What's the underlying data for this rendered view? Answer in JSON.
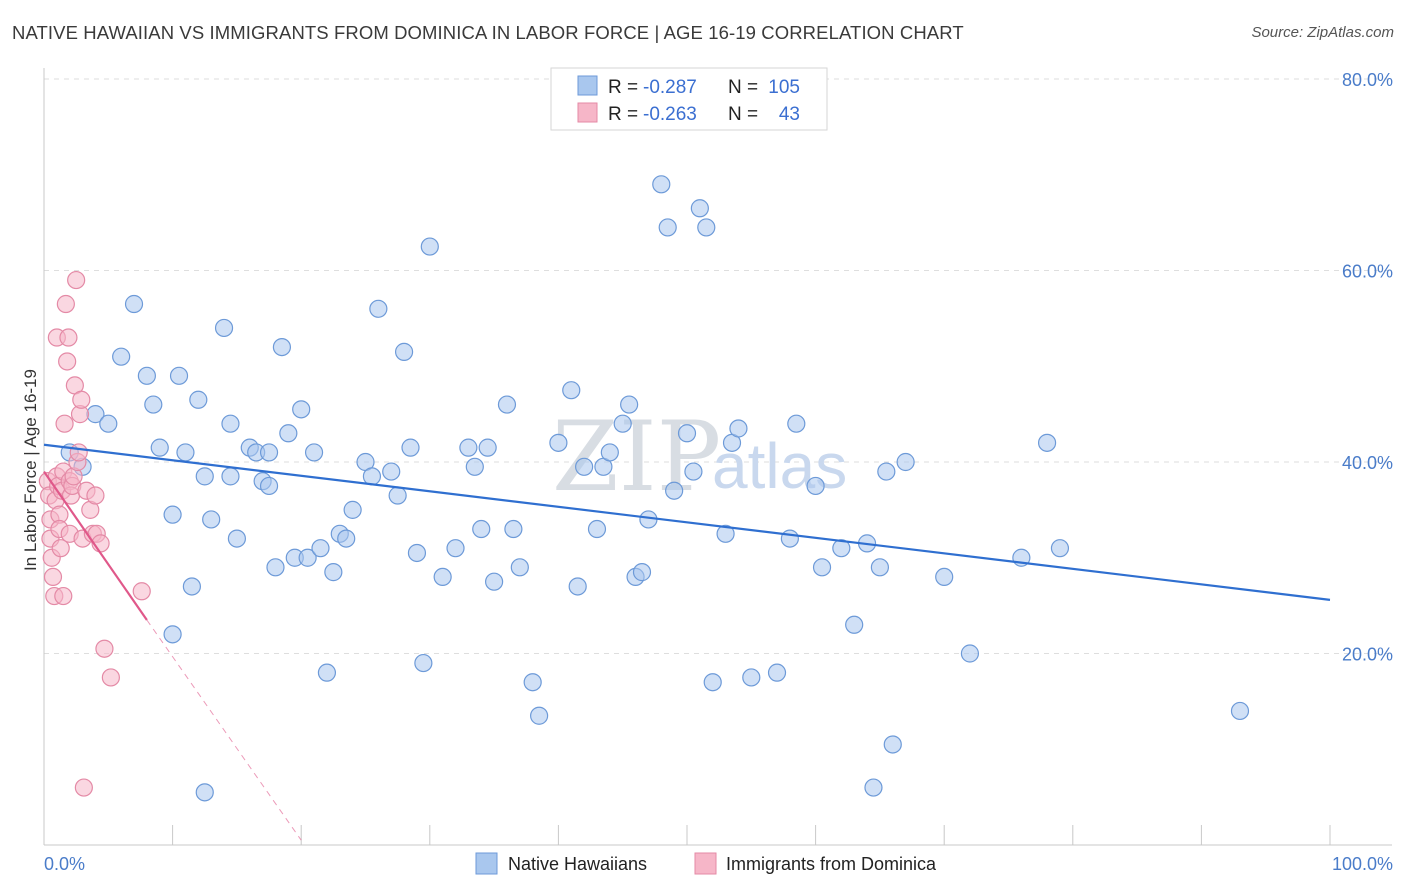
{
  "title": "NATIVE HAWAIIAN VS IMMIGRANTS FROM DOMINICA IN LABOR FORCE | AGE 16-19 CORRELATION CHART",
  "source": "Source: ZipAtlas.com",
  "watermark": {
    "zip": "ZIP",
    "atlas": "atlas"
  },
  "colors": {
    "blue_fill": "#a9c7ee",
    "blue_stroke": "#6d9ad8",
    "blue_line": "#2f6fd0",
    "pink_fill": "#f6b6c8",
    "pink_stroke": "#e48aa6",
    "pink_line": "#e0588a",
    "grid": "#dedede",
    "tick_text": "#4a7cc9"
  },
  "legend": {
    "rows": [
      {
        "r_label": "R =",
        "r_value": "-0.287",
        "n_label": "N =",
        "n_value": "105"
      },
      {
        "r_label": "R =",
        "r_value": "-0.263",
        "n_label": "N =",
        "n_value": "43"
      }
    ]
  },
  "chart_data": {
    "type": "scatter",
    "title": "NATIVE HAWAIIAN VS IMMIGRANTS FROM DOMINICA IN LABOR FORCE | AGE 16-19 CORRELATION CHART",
    "xlabel": "",
    "ylabel": "In Labor Force | Age 16-19",
    "xlim": [
      0,
      100
    ],
    "ylim": [
      0,
      80
    ],
    "x_tick_labels": [
      "0.0%",
      "100.0%"
    ],
    "y_ticks": [
      20,
      40,
      60,
      80
    ],
    "y_tick_labels": [
      "20.0%",
      "40.0%",
      "60.0%",
      "80.0%"
    ],
    "grid": true,
    "legend_position": "bottom",
    "series": [
      {
        "name": "Native Hawaiians",
        "color": "#a9c7ee",
        "r": -0.287,
        "n": 105,
        "trend": {
          "x": [
            0,
            100
          ],
          "y": [
            41.8,
            25.6
          ]
        },
        "points": [
          [
            2.0,
            41.0
          ],
          [
            3.0,
            39.5
          ],
          [
            4.0,
            45.0
          ],
          [
            5.0,
            44.0
          ],
          [
            6.0,
            51.0
          ],
          [
            7.0,
            56.5
          ],
          [
            8.0,
            49.0
          ],
          [
            8.5,
            46.0
          ],
          [
            9.0,
            41.5
          ],
          [
            10.0,
            34.5
          ],
          [
            10.5,
            49.0
          ],
          [
            11.0,
            41.0
          ],
          [
            12.0,
            46.5
          ],
          [
            12.5,
            38.5
          ],
          [
            13.0,
            34.0
          ],
          [
            14.0,
            54.0
          ],
          [
            14.5,
            38.5
          ],
          [
            15.0,
            32.0
          ],
          [
            16.0,
            41.5
          ],
          [
            16.5,
            41.0
          ],
          [
            17.0,
            38.0
          ],
          [
            17.5,
            37.5
          ],
          [
            18.0,
            29.0
          ],
          [
            18.5,
            52.0
          ],
          [
            19.0,
            43.0
          ],
          [
            19.5,
            30.0
          ],
          [
            20.0,
            45.5
          ],
          [
            21.0,
            41.0
          ],
          [
            22.0,
            18.0
          ],
          [
            22.5,
            28.5
          ],
          [
            23.0,
            32.5
          ],
          [
            23.5,
            32.0
          ],
          [
            24.0,
            35.0
          ],
          [
            25.0,
            40.0
          ],
          [
            25.5,
            38.5
          ],
          [
            26.0,
            56.0
          ],
          [
            27.0,
            39.0
          ],
          [
            27.5,
            36.5
          ],
          [
            28.0,
            51.5
          ],
          [
            28.5,
            41.5
          ],
          [
            29.0,
            30.5
          ],
          [
            29.5,
            19.0
          ],
          [
            30.0,
            62.5
          ],
          [
            31.0,
            28.0
          ],
          [
            32.0,
            31.0
          ],
          [
            33.0,
            41.5
          ],
          [
            33.5,
            39.5
          ],
          [
            34.0,
            33.0
          ],
          [
            34.5,
            41.5
          ],
          [
            35.0,
            27.5
          ],
          [
            36.0,
            46.0
          ],
          [
            36.5,
            33.0
          ],
          [
            37.0,
            29.0
          ],
          [
            38.0,
            17.0
          ],
          [
            38.5,
            13.5
          ],
          [
            40.0,
            42.0
          ],
          [
            41.0,
            47.5
          ],
          [
            41.5,
            27.0
          ],
          [
            42.0,
            39.5
          ],
          [
            43.0,
            33.0
          ],
          [
            43.5,
            39.5
          ],
          [
            44.0,
            41.0
          ],
          [
            45.0,
            44.0
          ],
          [
            45.5,
            46.0
          ],
          [
            46.0,
            28.0
          ],
          [
            46.5,
            28.5
          ],
          [
            47.0,
            34.0
          ],
          [
            48.0,
            69.0
          ],
          [
            48.5,
            64.5
          ],
          [
            49.0,
            37.0
          ],
          [
            50.0,
            43.0
          ],
          [
            50.5,
            39.0
          ],
          [
            51.0,
            66.5
          ],
          [
            51.5,
            64.5
          ],
          [
            52.0,
            17.0
          ],
          [
            53.0,
            32.5
          ],
          [
            53.5,
            42.0
          ],
          [
            54.0,
            43.5
          ],
          [
            55.0,
            17.5
          ],
          [
            57.0,
            18.0
          ],
          [
            58.0,
            32.0
          ],
          [
            58.5,
            44.0
          ],
          [
            60.0,
            37.5
          ],
          [
            60.5,
            29.0
          ],
          [
            62.0,
            31.0
          ],
          [
            63.0,
            23.0
          ],
          [
            64.0,
            31.5
          ],
          [
            64.5,
            6.0
          ],
          [
            65.0,
            29.0
          ],
          [
            65.5,
            39.0
          ],
          [
            66.0,
            10.5
          ],
          [
            67.0,
            40.0
          ],
          [
            70.0,
            28.0
          ],
          [
            72.0,
            20.0
          ],
          [
            76.0,
            30.0
          ],
          [
            78.0,
            42.0
          ],
          [
            79.0,
            31.0
          ],
          [
            93.0,
            14.0
          ],
          [
            10.0,
            22.0
          ],
          [
            11.5,
            27.0
          ],
          [
            12.5,
            5.5
          ],
          [
            14.5,
            44.0
          ],
          [
            17.5,
            41.0
          ],
          [
            20.5,
            30.0
          ],
          [
            21.5,
            31.0
          ]
        ]
      },
      {
        "name": "Immigrants from Dominica",
        "color": "#f6b6c8",
        "r": -0.263,
        "n": 43,
        "trend": {
          "x": [
            0,
            8.0
          ],
          "y": [
            39.0,
            23.5
          ]
        },
        "trend_extension": {
          "x": [
            8.0,
            20.0
          ],
          "y": [
            23.5,
            0.5
          ]
        },
        "points": [
          [
            0.3,
            38.0
          ],
          [
            0.4,
            36.5
          ],
          [
            0.5,
            34.0
          ],
          [
            0.5,
            32.0
          ],
          [
            0.6,
            30.0
          ],
          [
            0.7,
            28.0
          ],
          [
            0.8,
            26.0
          ],
          [
            0.9,
            36.0
          ],
          [
            1.0,
            38.5
          ],
          [
            1.0,
            53.0
          ],
          [
            1.1,
            37.5
          ],
          [
            1.2,
            34.5
          ],
          [
            1.2,
            33.0
          ],
          [
            1.3,
            31.0
          ],
          [
            1.4,
            37.0
          ],
          [
            1.5,
            39.0
          ],
          [
            1.5,
            26.0
          ],
          [
            1.6,
            44.0
          ],
          [
            1.7,
            56.5
          ],
          [
            1.8,
            50.5
          ],
          [
            1.9,
            53.0
          ],
          [
            2.0,
            38.0
          ],
          [
            2.0,
            32.5
          ],
          [
            2.1,
            36.5
          ],
          [
            2.2,
            37.5
          ],
          [
            2.3,
            38.5
          ],
          [
            2.4,
            48.0
          ],
          [
            2.5,
            59.0
          ],
          [
            2.6,
            40.0
          ],
          [
            2.7,
            41.0
          ],
          [
            2.8,
            45.0
          ],
          [
            2.9,
            46.5
          ],
          [
            3.0,
            32.0
          ],
          [
            3.1,
            6.0
          ],
          [
            3.3,
            37.0
          ],
          [
            3.6,
            35.0
          ],
          [
            3.8,
            32.5
          ],
          [
            4.0,
            36.5
          ],
          [
            4.1,
            32.5
          ],
          [
            4.4,
            31.5
          ],
          [
            4.7,
            20.5
          ],
          [
            5.2,
            17.5
          ],
          [
            7.6,
            26.5
          ]
        ]
      }
    ]
  },
  "bottom_legend": {
    "items": [
      "Native Hawaiians",
      "Immigrants from Dominica"
    ]
  }
}
